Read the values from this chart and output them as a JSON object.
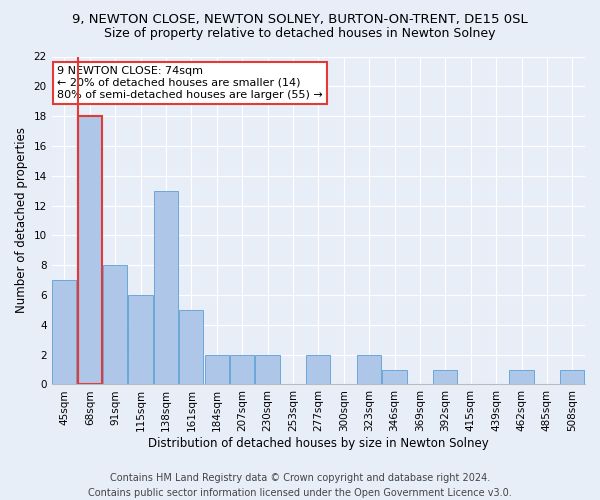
{
  "title": "9, NEWTON CLOSE, NEWTON SOLNEY, BURTON-ON-TRENT, DE15 0SL",
  "subtitle": "Size of property relative to detached houses in Newton Solney",
  "xlabel": "Distribution of detached houses by size in Newton Solney",
  "ylabel": "Number of detached properties",
  "categories": [
    "45sqm",
    "68sqm",
    "91sqm",
    "115sqm",
    "138sqm",
    "161sqm",
    "184sqm",
    "207sqm",
    "230sqm",
    "253sqm",
    "277sqm",
    "300sqm",
    "323sqm",
    "346sqm",
    "369sqm",
    "392sqm",
    "415sqm",
    "439sqm",
    "462sqm",
    "485sqm",
    "508sqm"
  ],
  "values": [
    7,
    18,
    8,
    6,
    13,
    5,
    2,
    2,
    2,
    0,
    2,
    0,
    2,
    1,
    0,
    1,
    0,
    0,
    1,
    0,
    1
  ],
  "bar_color": "#aec6e8",
  "bar_edge_color": "#5a9fd4",
  "highlight_bar_index": 1,
  "highlight_edge_color": "#e53935",
  "annotation_line1": "9 NEWTON CLOSE: 74sqm",
  "annotation_line2": "← 20% of detached houses are smaller (14)",
  "annotation_line3": "80% of semi-detached houses are larger (55) →",
  "annotation_box_color": "white",
  "annotation_box_edge_color": "#e53935",
  "ylim": [
    0,
    22
  ],
  "yticks": [
    0,
    2,
    4,
    6,
    8,
    10,
    12,
    14,
    16,
    18,
    20,
    22
  ],
  "bg_color": "#e8eef8",
  "plot_bg_color": "#e8eef8",
  "footer_line1": "Contains HM Land Registry data © Crown copyright and database right 2024.",
  "footer_line2": "Contains public sector information licensed under the Open Government Licence v3.0.",
  "title_fontsize": 9.5,
  "subtitle_fontsize": 9,
  "annotation_fontsize": 8,
  "axis_label_fontsize": 8.5,
  "tick_fontsize": 7.5,
  "footer_fontsize": 7
}
